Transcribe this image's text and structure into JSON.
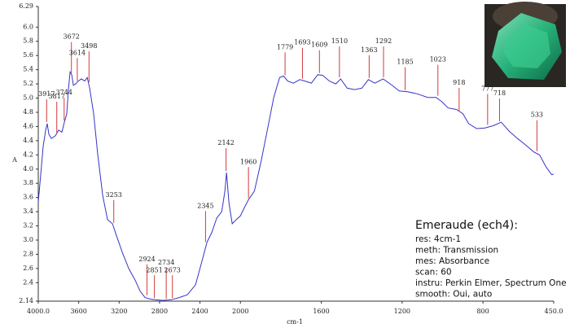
{
  "chart_data": {
    "type": "line",
    "y_label": "A",
    "x_label": "cm-1",
    "xlim": [
      4000,
      450
    ],
    "x_break": 2000,
    "ylim": [
      2.14,
      6.29
    ],
    "xticks": [
      {
        "value": 4000,
        "label": "4000.0"
      },
      3600,
      3200,
      2800,
      2400,
      2000,
      1600,
      1200,
      800,
      {
        "value": 450,
        "label": "450.0"
      }
    ],
    "yticks": [
      6.29,
      {
        "value": 6,
        "label": "6.0"
      },
      5.8,
      5.6,
      5.4,
      5.2,
      {
        "value": 5,
        "label": "5.0"
      },
      4.8,
      4.6,
      4.4,
      4.2,
      {
        "value": 4,
        "label": "4.0"
      },
      3.8,
      3.6,
      3.4,
      3.2,
      {
        "value": 3,
        "label": "3.0"
      },
      2.8,
      2.6,
      2.4,
      2.14
    ],
    "color": "#3535c8",
    "peak_color": "#d43a3a",
    "x": [
      4000,
      3976,
      3952,
      3927,
      3911,
      3895,
      3871,
      3831,
      3798,
      3766,
      3742,
      3718,
      3702,
      3685,
      3669,
      3653,
      3629,
      3605,
      3573,
      3540,
      3516,
      3492,
      3452,
      3411,
      3363,
      3315,
      3266,
      3226,
      3169,
      3105,
      3040,
      2992,
      2944,
      2895,
      2847,
      2766,
      2685,
      2605,
      2524,
      2444,
      2379,
      2331,
      2282,
      2234,
      2185,
      2153,
      2137,
      2113,
      2081,
      2040,
      2000,
      1980,
      1960,
      1931,
      1899,
      1867,
      1835,
      1806,
      1786,
      1766,
      1738,
      1706,
      1681,
      1649,
      1617,
      1593,
      1560,
      1528,
      1504,
      1472,
      1435,
      1399,
      1367,
      1335,
      1294,
      1254,
      1214,
      1173,
      1125,
      1073,
      1032,
      1004,
      972,
      931,
      899,
      871,
      831,
      790,
      750,
      710,
      669,
      629,
      589,
      548,
      520,
      488,
      460,
      450
    ],
    "values": [
      3.54,
      3.92,
      4.32,
      4.55,
      4.64,
      4.49,
      4.43,
      4.47,
      4.55,
      4.52,
      4.66,
      4.78,
      5.12,
      5.37,
      5.33,
      5.18,
      5.2,
      5.24,
      5.27,
      5.24,
      5.29,
      5.14,
      4.78,
      4.2,
      3.63,
      3.29,
      3.23,
      3.06,
      2.83,
      2.6,
      2.43,
      2.28,
      2.19,
      2.17,
      2.16,
      2.15,
      2.16,
      2.19,
      2.23,
      2.37,
      2.71,
      2.97,
      3.11,
      3.31,
      3.4,
      3.69,
      3.95,
      3.52,
      3.23,
      3.29,
      3.34,
      3.46,
      3.57,
      3.69,
      4.09,
      4.55,
      5.01,
      5.29,
      5.31,
      5.24,
      5.21,
      5.26,
      5.24,
      5.21,
      5.33,
      5.32,
      5.24,
      5.2,
      5.27,
      5.14,
      5.12,
      5.14,
      5.26,
      5.21,
      5.27,
      5.19,
      5.1,
      5.09,
      5.06,
      5.01,
      5.01,
      4.95,
      4.86,
      4.84,
      4.78,
      4.64,
      4.57,
      4.58,
      4.61,
      4.66,
      4.53,
      4.43,
      4.34,
      4.24,
      4.2,
      4.03,
      3.92,
      3.93
    ],
    "peaks": [
      {
        "x": 3917,
        "y": 4.64
      },
      {
        "x": 3817,
        "y": 4.49
      },
      {
        "x": 3744,
        "y": 4.66
      },
      {
        "x": 3672,
        "y": 5.33
      },
      {
        "x": 3614,
        "y": 5.22
      },
      {
        "x": 3498,
        "y": 5.2
      },
      {
        "x": 3253,
        "y": 3.22
      },
      {
        "x": 2924,
        "y": 2.2
      },
      {
        "x": 2851,
        "y": 2.16
      },
      {
        "x": 2734,
        "y": 2.15
      },
      {
        "x": 2673,
        "y": 2.16
      },
      {
        "x": 2345,
        "y": 2.95
      },
      {
        "x": 2142,
        "y": 3.95
      },
      {
        "x": 1960,
        "y": 3.57
      },
      {
        "x": 1779,
        "y": 5.3
      },
      {
        "x": 1693,
        "y": 5.25
      },
      {
        "x": 1609,
        "y": 5.33
      },
      {
        "x": 1510,
        "y": 5.27
      },
      {
        "x": 1363,
        "y": 5.26
      },
      {
        "x": 1292,
        "y": 5.27
      },
      {
        "x": 1185,
        "y": 5.09
      },
      {
        "x": 1023,
        "y": 5.01
      },
      {
        "x": 918,
        "y": 4.8
      },
      {
        "x": 777,
        "y": 4.6
      },
      {
        "x": 718,
        "y": 4.65
      },
      {
        "x": 533,
        "y": 4.23
      }
    ]
  },
  "info": {
    "title": "Emeraude (ech4):",
    "lines": [
      "res: 4cm-1",
      "meth: Transmission",
      "mes: Absorbance",
      "scan: 60",
      "instru: Perkin Elmer, Spectrum One",
      "smooth: Oui, auto"
    ]
  }
}
